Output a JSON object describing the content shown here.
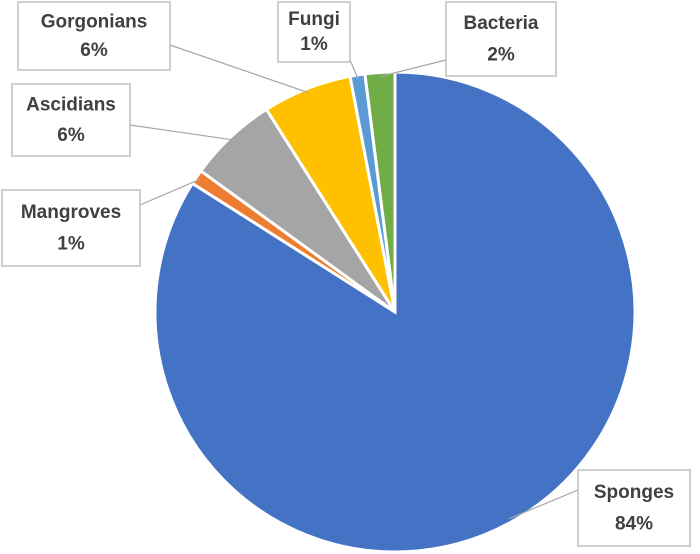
{
  "chart_data": {
    "type": "pie",
    "categories": [
      "Sponges",
      "Mangroves",
      "Ascidians",
      "Gorgonians",
      "Fungi",
      "Bacteria"
    ],
    "values": [
      84,
      1,
      6,
      6,
      1,
      2
    ],
    "value_labels": [
      "84%",
      "1%",
      "6%",
      "6%",
      "1%",
      "2%"
    ],
    "colors": [
      "#4472c4",
      "#ed7d31",
      "#a5a5a5",
      "#ffc000",
      "#5b9bd5",
      "#70ad47"
    ]
  }
}
